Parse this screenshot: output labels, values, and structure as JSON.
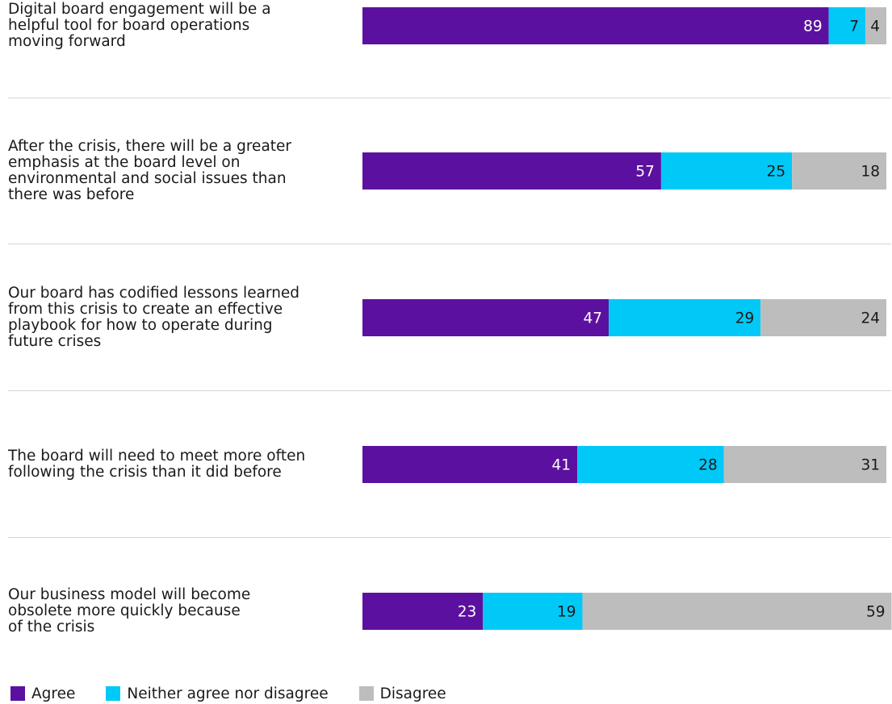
{
  "chart_data": {
    "type": "bar",
    "orientation": "horizontal",
    "stacked": true,
    "categories": [
      [
        "Digital board engagement will be a",
        "helpful tool for board operations",
        "moving forward"
      ],
      [
        "After the crisis, there will be a greater",
        "emphasis at the board level on",
        "environmental and social issues than",
        "there was before"
      ],
      [
        "Our board has codified lessons learned",
        "from this crisis to create an effective",
        "playbook for how to operate during",
        "future crises"
      ],
      [
        "The board will need to meet more often",
        "following the crisis than it did before"
      ],
      [
        "Our business model will become",
        "obsolete more quickly because",
        "of the crisis"
      ]
    ],
    "series": [
      {
        "name": "Agree",
        "color": "#5c10a0",
        "label_color": "#ffffff",
        "values": [
          89,
          57,
          47,
          41,
          23
        ]
      },
      {
        "name": "Neither agree nor disagree",
        "color": "#00c8f7",
        "label_color": "#1a1a1a",
        "values": [
          7,
          25,
          29,
          28,
          19
        ]
      },
      {
        "name": "Disagree",
        "color": "#bdbdbd",
        "label_color": "#1a1a1a",
        "values": [
          4,
          18,
          24,
          31,
          59
        ]
      }
    ],
    "xlim": [
      0,
      100
    ],
    "legend": "bottom-left",
    "grid": false
  }
}
